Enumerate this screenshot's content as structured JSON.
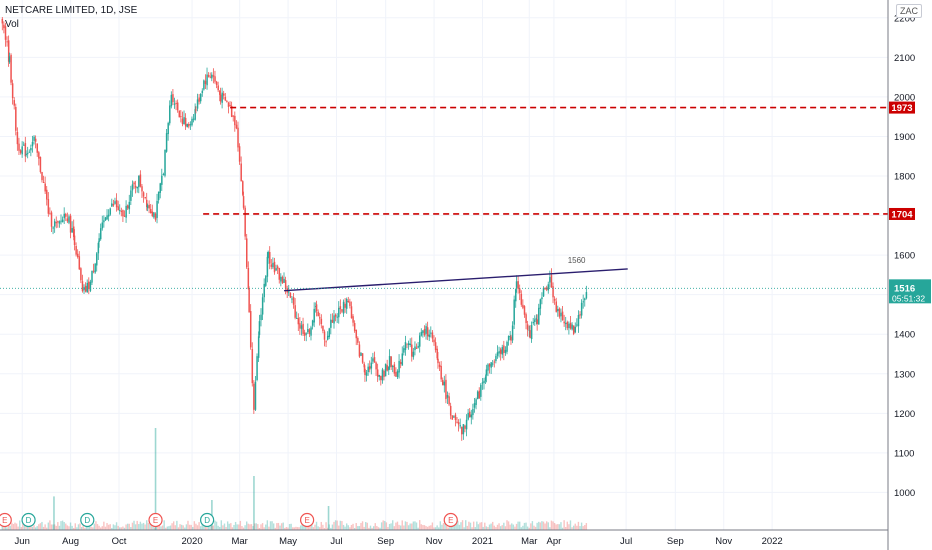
{
  "header": {
    "title": "NETCARE LIMITED, 1D, JSE",
    "volume_label": "Vol",
    "currency": "ZAC"
  },
  "colors": {
    "up": "#26a69a",
    "down": "#ef5350",
    "level_line": "#cc0000",
    "trendline": "#2a1e6e",
    "price_line": "#26a69a",
    "grid": "#f0f3fa",
    "axis_text": "#131722"
  },
  "chart_data": {
    "type": "candlestick",
    "y_axis": {
      "ticks": [
        2200,
        2100,
        2000,
        1900,
        1800,
        1700,
        1600,
        1500,
        1400,
        1300,
        1200,
        1100,
        1000
      ],
      "range": [
        905,
        2245
      ]
    },
    "x_axis": {
      "range": [
        "2019-05-04",
        "2022-05-27"
      ],
      "ticks": [
        {
          "label": "Jun",
          "date": "2019-06-01"
        },
        {
          "label": "Aug",
          "date": "2019-08-01"
        },
        {
          "label": "Oct",
          "date": "2019-10-01"
        },
        {
          "label": "2020",
          "date": "2020-01-01"
        },
        {
          "label": "Mar",
          "date": "2020-03-01"
        },
        {
          "label": "May",
          "date": "2020-05-01"
        },
        {
          "label": "Jul",
          "date": "2020-07-01"
        },
        {
          "label": "Sep",
          "date": "2020-09-01"
        },
        {
          "label": "Nov",
          "date": "2020-11-01"
        },
        {
          "label": "2021",
          "date": "2021-01-01"
        },
        {
          "label": "Mar",
          "date": "2021-03-01"
        },
        {
          "label": "Apr",
          "date": "2021-04-01"
        },
        {
          "label": "Jul",
          "date": "2021-07-01"
        },
        {
          "label": "Sep",
          "date": "2021-09-01"
        },
        {
          "label": "Nov",
          "date": "2021-11-01"
        },
        {
          "label": "2022",
          "date": "2022-01-01"
        }
      ]
    },
    "closes": [
      {
        "date": "2019-05-06",
        "close": 2200
      },
      {
        "date": "2019-05-15",
        "close": 2090
      },
      {
        "date": "2019-05-25",
        "close": 1880
      },
      {
        "date": "2019-06-05",
        "close": 1860
      },
      {
        "date": "2019-06-15",
        "close": 1890
      },
      {
        "date": "2019-06-25",
        "close": 1800
      },
      {
        "date": "2019-07-05",
        "close": 1690
      },
      {
        "date": "2019-07-15",
        "close": 1670
      },
      {
        "date": "2019-07-25",
        "close": 1710
      },
      {
        "date": "2019-08-05",
        "close": 1640
      },
      {
        "date": "2019-08-15",
        "close": 1500
      },
      {
        "date": "2019-08-25",
        "close": 1530
      },
      {
        "date": "2019-09-05",
        "close": 1640
      },
      {
        "date": "2019-09-15",
        "close": 1710
      },
      {
        "date": "2019-09-25",
        "close": 1730
      },
      {
        "date": "2019-10-05",
        "close": 1690
      },
      {
        "date": "2019-10-15",
        "close": 1760
      },
      {
        "date": "2019-10-25",
        "close": 1790
      },
      {
        "date": "2019-11-05",
        "close": 1730
      },
      {
        "date": "2019-11-15",
        "close": 1700
      },
      {
        "date": "2019-11-25",
        "close": 1820
      },
      {
        "date": "2019-12-05",
        "close": 2010
      },
      {
        "date": "2019-12-15",
        "close": 1960
      },
      {
        "date": "2019-12-25",
        "close": 1920
      },
      {
        "date": "2020-01-05",
        "close": 1970
      },
      {
        "date": "2020-01-15",
        "close": 2040
      },
      {
        "date": "2020-01-25",
        "close": 2060
      },
      {
        "date": "2020-02-05",
        "close": 2000
      },
      {
        "date": "2020-02-15",
        "close": 1980
      },
      {
        "date": "2020-02-25",
        "close": 1930
      },
      {
        "date": "2020-03-05",
        "close": 1720
      },
      {
        "date": "2020-03-12",
        "close": 1470
      },
      {
        "date": "2020-03-18",
        "close": 1200
      },
      {
        "date": "2020-03-25",
        "close": 1430
      },
      {
        "date": "2020-04-05",
        "close": 1600
      },
      {
        "date": "2020-04-15",
        "close": 1560
      },
      {
        "date": "2020-04-25",
        "close": 1530
      },
      {
        "date": "2020-05-05",
        "close": 1480
      },
      {
        "date": "2020-05-15",
        "close": 1420
      },
      {
        "date": "2020-05-25",
        "close": 1400
      },
      {
        "date": "2020-06-05",
        "close": 1470
      },
      {
        "date": "2020-06-15",
        "close": 1380
      },
      {
        "date": "2020-06-25",
        "close": 1440
      },
      {
        "date": "2020-07-05",
        "close": 1460
      },
      {
        "date": "2020-07-15",
        "close": 1490
      },
      {
        "date": "2020-07-25",
        "close": 1380
      },
      {
        "date": "2020-08-05",
        "close": 1310
      },
      {
        "date": "2020-08-15",
        "close": 1330
      },
      {
        "date": "2020-08-25",
        "close": 1290
      },
      {
        "date": "2020-09-05",
        "close": 1330
      },
      {
        "date": "2020-09-15",
        "close": 1300
      },
      {
        "date": "2020-09-25",
        "close": 1390
      },
      {
        "date": "2020-10-05",
        "close": 1350
      },
      {
        "date": "2020-10-15",
        "close": 1400
      },
      {
        "date": "2020-10-25",
        "close": 1410
      },
      {
        "date": "2020-11-05",
        "close": 1330
      },
      {
        "date": "2020-11-15",
        "close": 1250
      },
      {
        "date": "2020-11-25",
        "close": 1180
      },
      {
        "date": "2020-12-05",
        "close": 1150
      },
      {
        "date": "2020-12-15",
        "close": 1200
      },
      {
        "date": "2020-12-25",
        "close": 1240
      },
      {
        "date": "2021-01-05",
        "close": 1310
      },
      {
        "date": "2021-01-15",
        "close": 1330
      },
      {
        "date": "2021-01-25",
        "close": 1360
      },
      {
        "date": "2021-02-05",
        "close": 1390
      },
      {
        "date": "2021-02-12",
        "close": 1540
      },
      {
        "date": "2021-02-20",
        "close": 1470
      },
      {
        "date": "2021-03-01",
        "close": 1400
      },
      {
        "date": "2021-03-10",
        "close": 1440
      },
      {
        "date": "2021-03-18",
        "close": 1510
      },
      {
        "date": "2021-03-26",
        "close": 1540
      },
      {
        "date": "2021-04-05",
        "close": 1450
      },
      {
        "date": "2021-04-15",
        "close": 1430
      },
      {
        "date": "2021-04-25",
        "close": 1410
      },
      {
        "date": "2021-05-05",
        "close": 1470
      },
      {
        "date": "2021-05-12",
        "close": 1516
      }
    ],
    "horizontal_levels": [
      {
        "value": 1973,
        "label": "1973"
      },
      {
        "value": 1704,
        "label": "1704"
      }
    ],
    "trendline": {
      "start": {
        "date": "2020-04-26",
        "value": 1510
      },
      "end": {
        "date": "2021-07-03",
        "value": 1565
      },
      "label": "1560"
    },
    "last_price": {
      "value": 1516,
      "label": "1516",
      "countdown": "05:51:32"
    },
    "volume": [
      {
        "date": "2019-07-10",
        "value": 0.28
      },
      {
        "date": "2019-11-15",
        "value": 0.85
      },
      {
        "date": "2020-01-25",
        "value": 0.25
      },
      {
        "date": "2020-03-18",
        "value": 0.45
      },
      {
        "date": "2020-06-20",
        "value": 0.2
      }
    ],
    "events": [
      {
        "date": "2019-05-10",
        "type": "E"
      },
      {
        "date": "2019-06-09",
        "type": "D"
      },
      {
        "date": "2019-08-22",
        "type": "D"
      },
      {
        "date": "2019-11-16",
        "type": "E"
      },
      {
        "date": "2020-01-20",
        "type": "D"
      },
      {
        "date": "2020-05-25",
        "type": "E"
      },
      {
        "date": "2020-11-22",
        "type": "E"
      }
    ]
  }
}
